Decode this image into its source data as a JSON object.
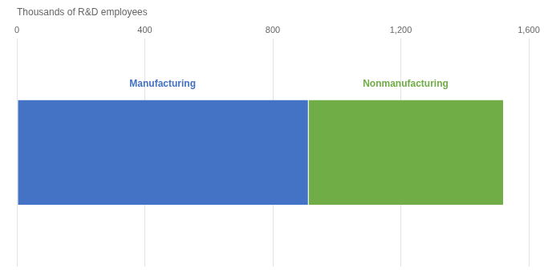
{
  "chart_data": {
    "type": "bar",
    "orientation": "horizontal",
    "stacked": true,
    "x_label": "Thousands of R&D employees",
    "categories": [
      null
    ],
    "series": [
      {
        "name": "Manufacturing",
        "color": "#4472c4",
        "values": [
          910
        ]
      },
      {
        "name": "Nonmanufacturing",
        "color": "#70ad47",
        "values": [
          610
        ]
      }
    ],
    "xlim": [
      0,
      1600
    ],
    "xticks": [
      0,
      400,
      800,
      {
        "value": 1200,
        "label": "1,200"
      },
      {
        "value": 1600,
        "label": "1,600"
      }
    ],
    "grid": true,
    "tick_labels": "x"
  }
}
